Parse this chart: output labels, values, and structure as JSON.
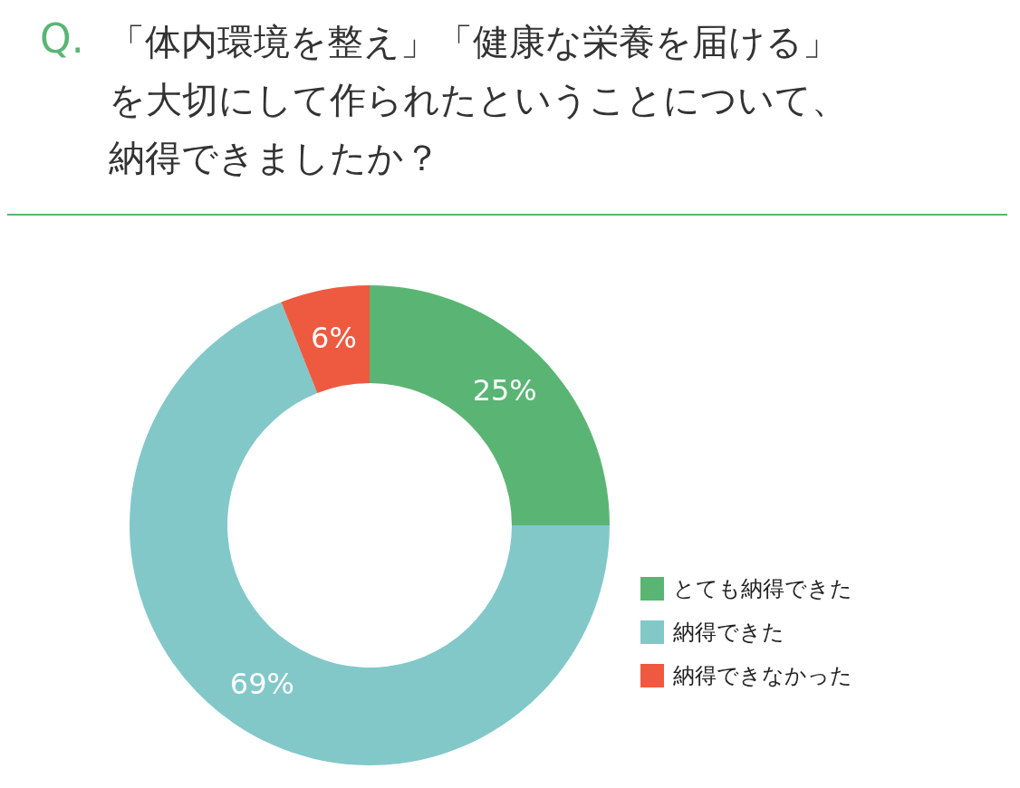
{
  "chart_data": {
    "type": "donut",
    "title": "「体内環境を整え」「健康な栄養を届ける」を大切にして作られたということについて、納得できましたか？",
    "annotations": [
      "Q."
    ],
    "categories": [
      "とても納得できた",
      "納得できた",
      "納得できなかった"
    ],
    "values": [
      25,
      69,
      6
    ],
    "colors": [
      "#5ab574",
      "#82c8c9",
      "#ee5a40"
    ],
    "value_labels": [
      "25%",
      "69%",
      "6%"
    ],
    "legend": "bottom right"
  }
}
